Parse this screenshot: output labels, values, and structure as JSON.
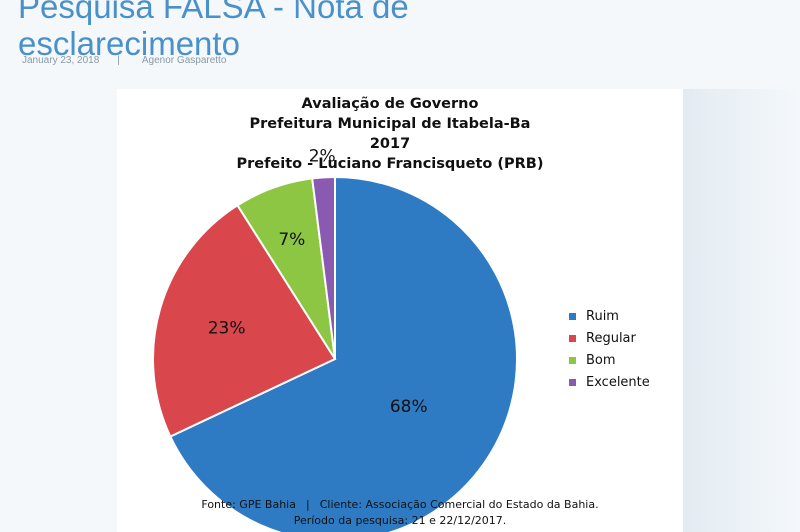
{
  "post": {
    "title_line1": "Pesquisa FALSA - Nota de",
    "title_line2": "esclarecimento",
    "date": "January 23, 2018",
    "separator": "|",
    "author": "Agenor Gasparetto"
  },
  "chart_data": {
    "type": "pie",
    "title_lines": [
      "Avaliação de Governo",
      "Prefeitura Municipal de Itabela-Ba",
      "2017",
      "Prefeito - Luciano Francisqueto (PRB)"
    ],
    "categories": [
      "Ruim",
      "Regular",
      "Bom",
      "Excelente"
    ],
    "values": [
      68,
      23,
      7,
      2
    ],
    "value_labels": [
      "68%",
      "23%",
      "7%",
      "2%"
    ],
    "colors": [
      "#2e7bc4",
      "#d9474c",
      "#8dc642",
      "#8a5ab0"
    ],
    "legend_position": "right",
    "source_line1_fonte": "Fonte:  GPE Bahia",
    "source_line1_pipe": "|",
    "source_line1_cliente": "Cliente: Associação Comercial do Estado da Bahia.",
    "source_line2": "Período da pesquisa: 21 e 22/12/2017."
  }
}
